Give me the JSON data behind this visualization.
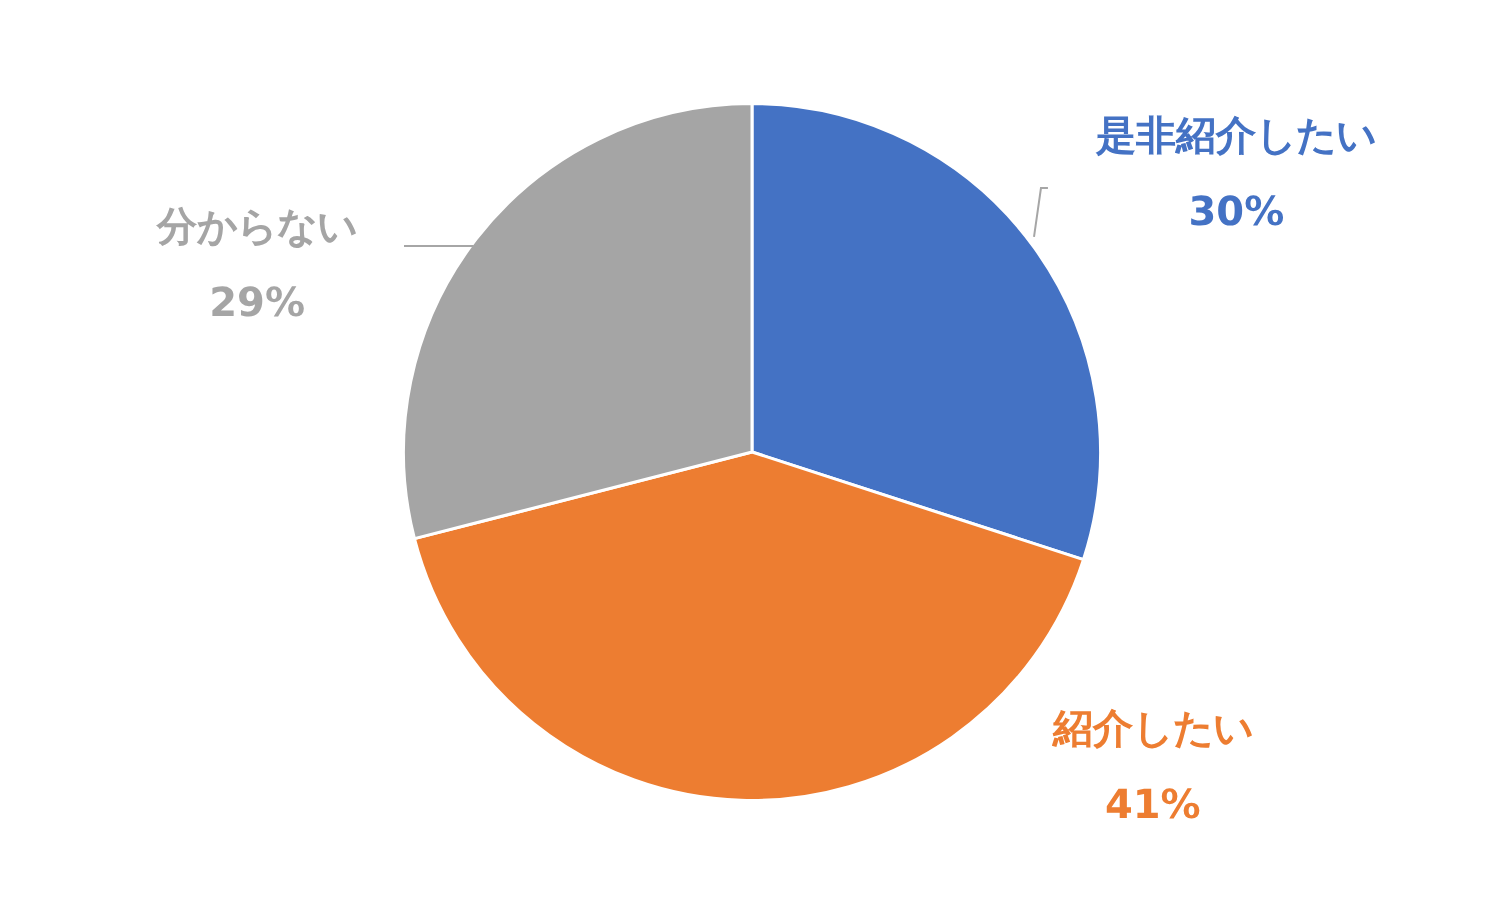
{
  "chart_data": {
    "type": "pie",
    "categories": [
      "是非紹介したい",
      "紹介したい",
      "分からない"
    ],
    "values": [
      30,
      41,
      29
    ],
    "colors": [
      "#4472c4",
      "#ed7d31",
      "#a5a5a5"
    ],
    "value_labels": [
      "30%",
      "41%",
      "29%"
    ],
    "legend": false
  }
}
